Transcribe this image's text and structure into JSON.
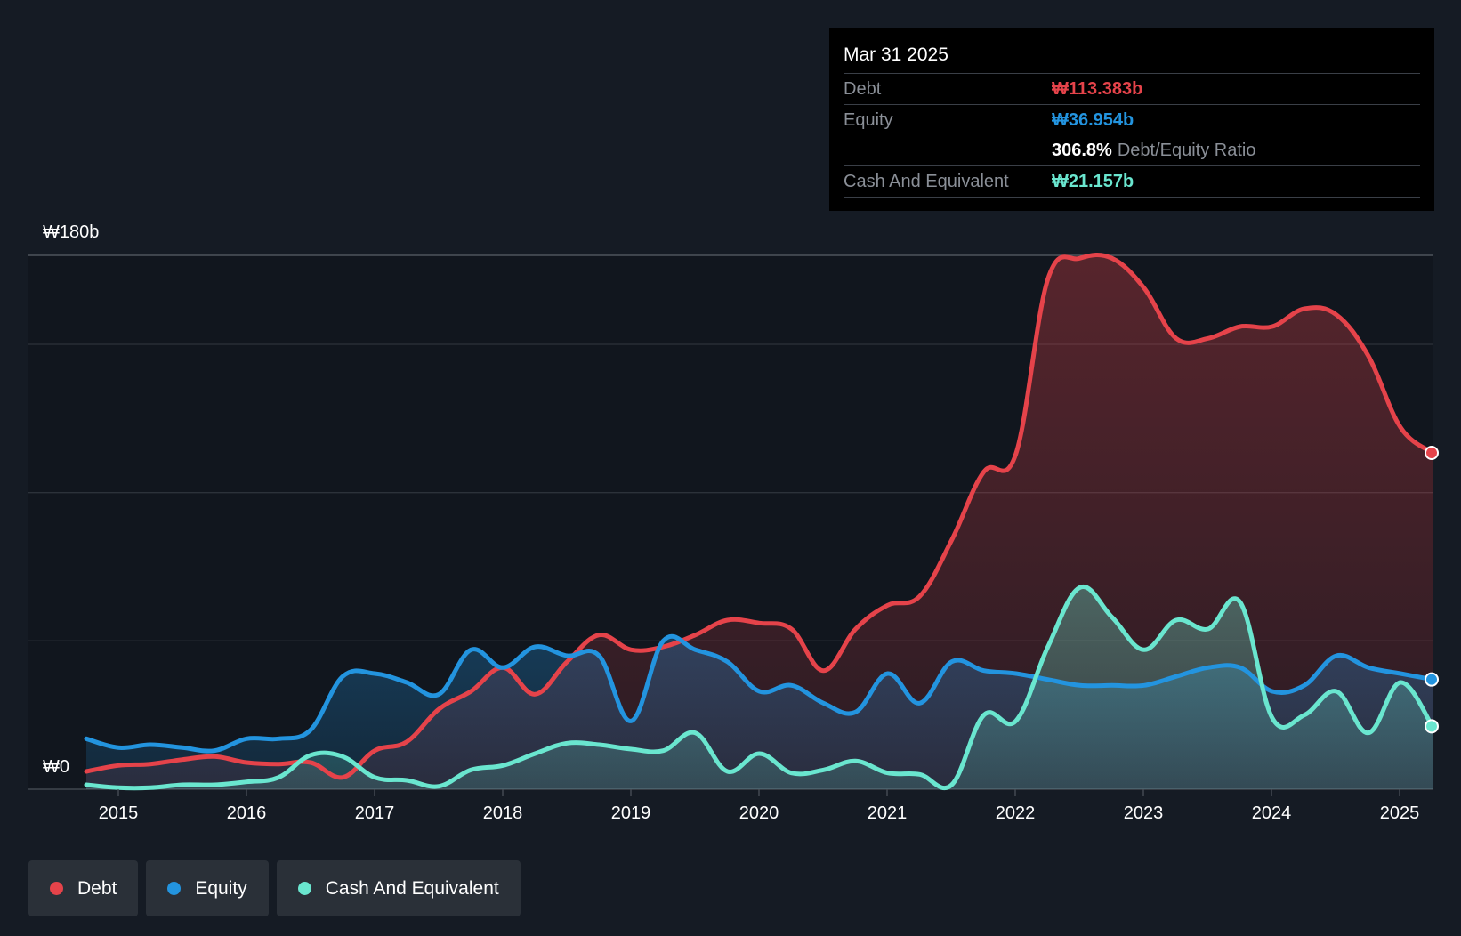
{
  "tooltip": {
    "date": "Mar 31 2025",
    "debt_label": "Debt",
    "debt_value": "₩113.383b",
    "equity_label": "Equity",
    "equity_value": "₩36.954b",
    "ratio_value": "306.8%",
    "ratio_label": "Debt/Equity Ratio",
    "cash_label": "Cash And Equivalent",
    "cash_value": "₩21.157b"
  },
  "legend": {
    "debt": "Debt",
    "equity": "Equity",
    "cash": "Cash And Equivalent"
  },
  "colors": {
    "debt": "#e5434a",
    "equity": "#2394df",
    "cash": "#6ae6cf",
    "background": "#151b24"
  },
  "chart_data": {
    "type": "area",
    "title": "",
    "ylabel_top": "₩180b",
    "ylabel_bottom": "₩0",
    "ylim": [
      0,
      180
    ],
    "xlim": [
      2014.75,
      2025.25
    ],
    "x_ticks": [
      2015,
      2016,
      2017,
      2018,
      2019,
      2020,
      2021,
      2022,
      2023,
      2024,
      2025
    ],
    "x_tick_labels": [
      "2015",
      "2016",
      "2017",
      "2018",
      "2019",
      "2020",
      "2021",
      "2022",
      "2023",
      "2024",
      "2025"
    ],
    "gridlines": [
      50,
      100,
      150,
      180
    ],
    "series": [
      {
        "name": "Debt",
        "key": "debt",
        "x": [
          2014.75,
          2015.0,
          2015.25,
          2015.5,
          2015.75,
          2016.0,
          2016.25,
          2016.5,
          2016.75,
          2017.0,
          2017.25,
          2017.5,
          2017.75,
          2018.0,
          2018.25,
          2018.5,
          2018.75,
          2019.0,
          2019.25,
          2019.5,
          2019.75,
          2020.0,
          2020.25,
          2020.5,
          2020.75,
          2021.0,
          2021.25,
          2021.5,
          2021.75,
          2022.0,
          2022.25,
          2022.5,
          2022.75,
          2023.0,
          2023.25,
          2023.5,
          2023.75,
          2024.0,
          2024.25,
          2024.5,
          2024.75,
          2025.0,
          2025.25
        ],
        "values": [
          6,
          8,
          8.5,
          10,
          11,
          9,
          8.5,
          9,
          4,
          13,
          16,
          27,
          33,
          41,
          32,
          43,
          52,
          47,
          48,
          52,
          57,
          56,
          54,
          40,
          54,
          62,
          65,
          84,
          107,
          113,
          172,
          179,
          179,
          169,
          152,
          152,
          156,
          156,
          162,
          160,
          146,
          122,
          113.4
        ]
      },
      {
        "name": "Equity",
        "key": "equity",
        "x": [
          2014.75,
          2015.0,
          2015.25,
          2015.5,
          2015.75,
          2016.0,
          2016.25,
          2016.5,
          2016.75,
          2017.0,
          2017.25,
          2017.5,
          2017.75,
          2018.0,
          2018.25,
          2018.5,
          2018.75,
          2019.0,
          2019.25,
          2019.5,
          2019.75,
          2020.0,
          2020.25,
          2020.5,
          2020.75,
          2021.0,
          2021.25,
          2021.5,
          2021.75,
          2022.0,
          2022.25,
          2022.5,
          2022.75,
          2023.0,
          2023.25,
          2023.5,
          2023.75,
          2024.0,
          2024.25,
          2024.5,
          2024.75,
          2025.0,
          2025.25
        ],
        "values": [
          17,
          14,
          15,
          14,
          13,
          17,
          17,
          20,
          38,
          39,
          36,
          32,
          47,
          41,
          48,
          45,
          45,
          23,
          50,
          47,
          43,
          33,
          35,
          29,
          26,
          39,
          29,
          43,
          40,
          39,
          37,
          35,
          35,
          35,
          38,
          41,
          41,
          33,
          35,
          45,
          41,
          39,
          37
        ]
      },
      {
        "name": "Cash And Equivalent",
        "key": "cash",
        "x": [
          2014.75,
          2015.0,
          2015.25,
          2015.5,
          2015.75,
          2016.0,
          2016.25,
          2016.5,
          2016.75,
          2017.0,
          2017.25,
          2017.5,
          2017.75,
          2018.0,
          2018.25,
          2018.5,
          2018.75,
          2019.0,
          2019.25,
          2019.5,
          2019.75,
          2020.0,
          2020.25,
          2020.5,
          2020.75,
          2021.0,
          2021.25,
          2021.5,
          2021.75,
          2022.0,
          2022.25,
          2022.5,
          2022.75,
          2023.0,
          2023.25,
          2023.5,
          2023.75,
          2024.0,
          2024.25,
          2024.5,
          2024.75,
          2025.0,
          2025.25
        ],
        "values": [
          1.5,
          0.5,
          0.5,
          1.5,
          1.5,
          2.5,
          4,
          11.5,
          11,
          4,
          3,
          1,
          6.5,
          8,
          12,
          15.5,
          15,
          13.5,
          13,
          19,
          6,
          12,
          5.5,
          6.5,
          9.5,
          5.5,
          5,
          1.5,
          25,
          23,
          48,
          68,
          58,
          47,
          57,
          54,
          63,
          24,
          25,
          33,
          19,
          36,
          21.2
        ]
      }
    ],
    "end_markers": [
      {
        "series": "Debt",
        "x": 2025.25,
        "y": 113.4
      },
      {
        "series": "Equity",
        "x": 2025.25,
        "y": 37
      },
      {
        "series": "Cash And Equivalent",
        "x": 2025.25,
        "y": 21.2
      }
    ]
  }
}
